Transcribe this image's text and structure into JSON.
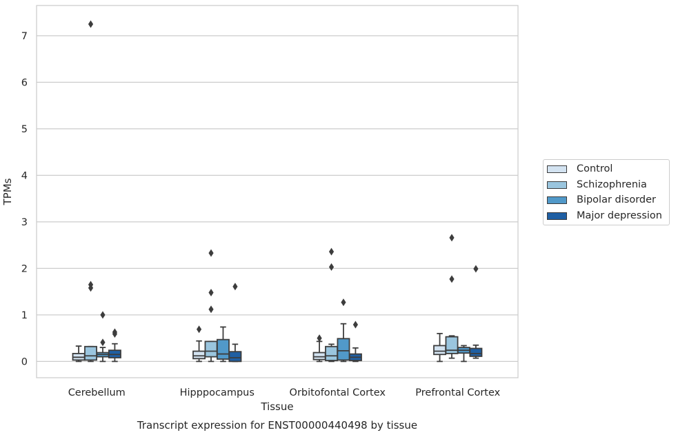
{
  "chart_data": {
    "type": "box",
    "title": "Transcript expression for ENST00000440498 by tissue",
    "xlabel": "Tissue",
    "ylabel": "TPMs",
    "ylim": [
      -0.35,
      7.65
    ],
    "yticks": [
      0,
      1,
      2,
      3,
      4,
      5,
      6,
      7
    ],
    "grid": true,
    "legend_position": "right",
    "categories": [
      "Cerebellum",
      "Hipppocampus",
      "Orbitofontal Cortex",
      "Prefrontal Cortex"
    ],
    "series": [
      {
        "name": "Control",
        "color": "#d3e3f1",
        "boxes": [
          {
            "whislo": 0.0,
            "q1": 0.03,
            "med": 0.09,
            "q3": 0.17,
            "whishi": 0.33,
            "fliers": []
          },
          {
            "whislo": 0.0,
            "q1": 0.06,
            "med": 0.12,
            "q3": 0.22,
            "whishi": 0.44,
            "fliers": [
              0.69
            ]
          },
          {
            "whislo": 0.0,
            "q1": 0.04,
            "med": 0.1,
            "q3": 0.19,
            "whishi": 0.43,
            "fliers": [
              0.5
            ]
          },
          {
            "whislo": 0.0,
            "q1": 0.15,
            "med": 0.22,
            "q3": 0.34,
            "whishi": 0.6,
            "fliers": []
          }
        ]
      },
      {
        "name": "Schizophrenia",
        "color": "#9ac5de",
        "boxes": [
          {
            "whislo": 0.0,
            "q1": 0.03,
            "med": 0.12,
            "q3": 0.32,
            "whishi": 0.32,
            "fliers": [
              7.25,
              1.65,
              1.58
            ]
          },
          {
            "whislo": 0.0,
            "q1": 0.1,
            "med": 0.22,
            "q3": 0.43,
            "whishi": 0.43,
            "fliers": [
              2.33,
              1.48,
              1.12
            ]
          },
          {
            "whislo": 0.0,
            "q1": 0.02,
            "med": 0.12,
            "q3": 0.32,
            "whishi": 0.37,
            "fliers": [
              2.36,
              2.03
            ]
          },
          {
            "whislo": 0.07,
            "q1": 0.17,
            "med": 0.24,
            "q3": 0.53,
            "whishi": 0.55,
            "fliers": [
              2.66,
              1.77
            ]
          }
        ]
      },
      {
        "name": "Bipolar disorder",
        "color": "#5199c9",
        "boxes": [
          {
            "whislo": 0.0,
            "q1": 0.1,
            "med": 0.15,
            "q3": 0.19,
            "whishi": 0.3,
            "fliers": [
              1.0,
              0.41
            ]
          },
          {
            "whislo": 0.0,
            "q1": 0.05,
            "med": 0.16,
            "q3": 0.47,
            "whishi": 0.74,
            "fliers": []
          },
          {
            "whislo": 0.0,
            "q1": 0.03,
            "med": 0.23,
            "q3": 0.49,
            "whishi": 0.81,
            "fliers": [
              1.27
            ]
          },
          {
            "whislo": 0.0,
            "q1": 0.18,
            "med": 0.24,
            "q3": 0.3,
            "whishi": 0.34,
            "fliers": []
          }
        ]
      },
      {
        "name": "Major depression",
        "color": "#1f5fa3",
        "boxes": [
          {
            "whislo": 0.0,
            "q1": 0.08,
            "med": 0.15,
            "q3": 0.24,
            "whishi": 0.38,
            "fliers": [
              0.63,
              0.59
            ]
          },
          {
            "whislo": 0.0,
            "q1": 0.0,
            "med": 0.08,
            "q3": 0.21,
            "whishi": 0.37,
            "fliers": [
              1.61
            ]
          },
          {
            "whislo": 0.0,
            "q1": 0.02,
            "med": 0.09,
            "q3": 0.16,
            "whishi": 0.29,
            "fliers": [
              0.79
            ]
          },
          {
            "whislo": 0.07,
            "q1": 0.11,
            "med": 0.17,
            "q3": 0.28,
            "whishi": 0.35,
            "fliers": [
              1.99
            ]
          }
        ]
      }
    ]
  }
}
